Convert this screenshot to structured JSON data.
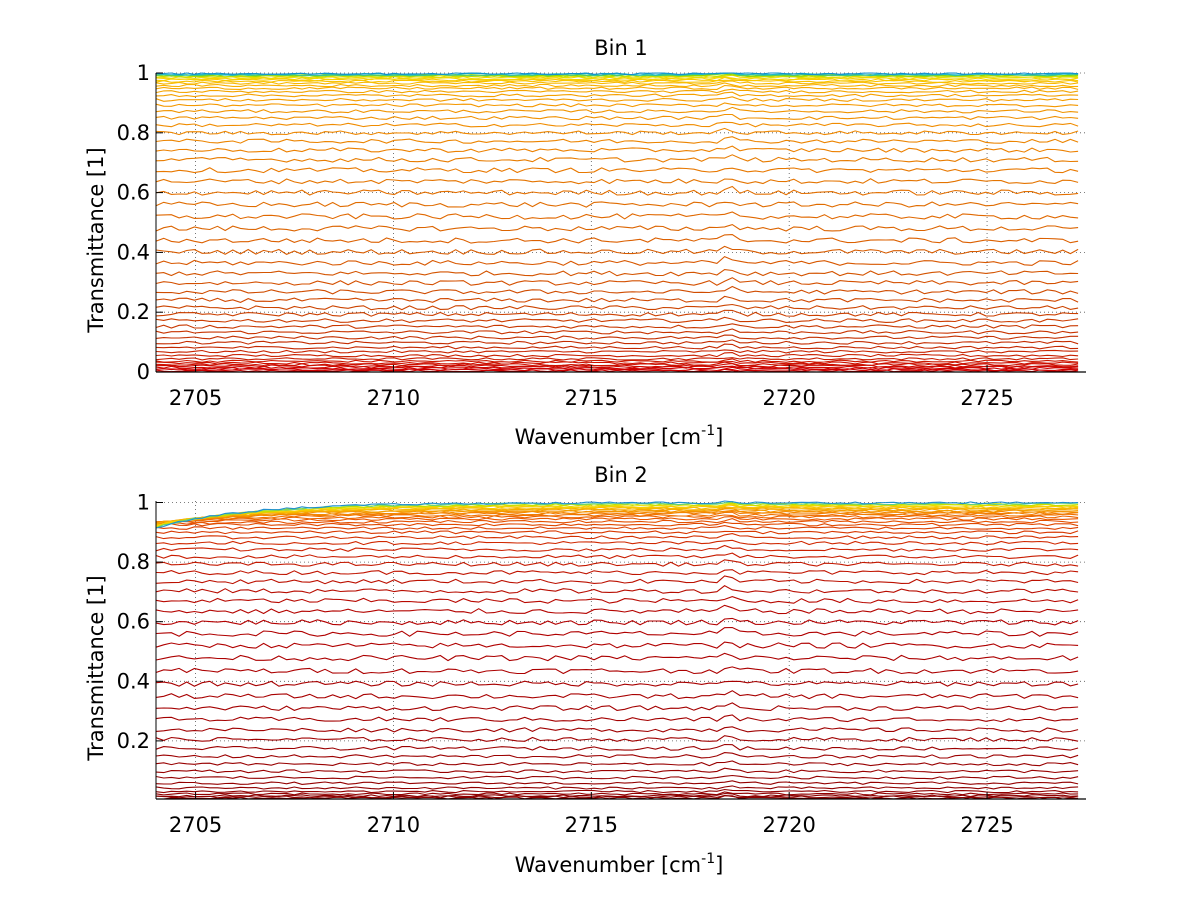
{
  "chart_data": [
    {
      "type": "line",
      "title": "Bin 1",
      "xlabel_main": "Wavenumber [cm",
      "xlabel_sup": "-1",
      "xlabel_tail": "]",
      "ylabel": "Transmittance [1]",
      "xlim": [
        2704,
        2727.5
      ],
      "ylim": [
        0,
        1
      ],
      "grid": true,
      "x_ticks": [
        2705,
        2710,
        2715,
        2720,
        2725
      ],
      "x_tick_labels": [
        "2705",
        "2710",
        "2715",
        "2720",
        "2725"
      ],
      "y_ticks": [
        0,
        0.2,
        0.4,
        0.6,
        0.8,
        1
      ],
      "y_tick_labels": [
        "0",
        "0.2",
        "0.4",
        "0.6",
        "0.8",
        "1"
      ],
      "series_levels": [
        0.0,
        0.004,
        0.008,
        0.012,
        0.016,
        0.02,
        0.025,
        0.03,
        0.036,
        0.044,
        0.055,
        0.068,
        0.082,
        0.098,
        0.115,
        0.133,
        0.152,
        0.172,
        0.193,
        0.215,
        0.24,
        0.268,
        0.298,
        0.33,
        0.365,
        0.402,
        0.44,
        0.48,
        0.52,
        0.56,
        0.6,
        0.638,
        0.675,
        0.71,
        0.742,
        0.772,
        0.8,
        0.826,
        0.85,
        0.872,
        0.892,
        0.91,
        0.925,
        0.938,
        0.949,
        0.958,
        0.966,
        0.972,
        0.977,
        0.981,
        0.985,
        0.988,
        0.99,
        0.992,
        0.994,
        0.996,
        0.998
      ],
      "series_colors": [
        "#cc0000",
        "#cc0000",
        "#cc0000",
        "#cc0000",
        "#cc0800",
        "#cc0800",
        "#cc1000",
        "#cc1000",
        "#cc1800",
        "#c81c00",
        "#c82000",
        "#c82400",
        "#c42800",
        "#c42c00",
        "#c43000",
        "#c83400",
        "#c83800",
        "#cc3c00",
        "#cc4000",
        "#cc4400",
        "#d04800",
        "#d04c00",
        "#d45000",
        "#d45400",
        "#d85800",
        "#d85c00",
        "#dc6000",
        "#dc6400",
        "#e06800",
        "#e06c00",
        "#e47000",
        "#e47400",
        "#e87800",
        "#e87c00",
        "#ec8000",
        "#ec8400",
        "#f08800",
        "#f08c00",
        "#f09000",
        "#f09400",
        "#f49800",
        "#f49c00",
        "#f4a000",
        "#f4a400",
        "#f8a800",
        "#f8b000",
        "#f8b800",
        "#f8c000",
        "#f8c800",
        "#f8d000",
        "#f0d800",
        "#e0e000",
        "#c0e000",
        "#90d800",
        "#40c880",
        "#20b8c8",
        "#1090d0"
      ],
      "tilt_amplitude": [
        0.0,
        0.0,
        0.0,
        0.0,
        0.0,
        0.0,
        0.0,
        0.0,
        0.0,
        0.0,
        0.0,
        0.0,
        0.0,
        0.0,
        0.0,
        0.0,
        0.0,
        0.0,
        0.0,
        0.0,
        0.0,
        0.0,
        0.0,
        0.0,
        0.0,
        0.0,
        0.0,
        0.0,
        0.0,
        0.0,
        0.0,
        0.0,
        0.0,
        0.0,
        0.0,
        0.0,
        0.0,
        0.0,
        0.0,
        0.0,
        0.0,
        0.0,
        0.0,
        0.0,
        0.0,
        0.0,
        0.0,
        0.0,
        0.0,
        0.0,
        0.0,
        0.0,
        0.0,
        0.0,
        0.0,
        0.0,
        0.0
      ]
    },
    {
      "type": "line",
      "title": "Bin 2",
      "xlabel_main": "Wavenumber [cm",
      "xlabel_sup": "-1",
      "xlabel_tail": "]",
      "ylabel": "Transmittance [1]",
      "xlim": [
        2704,
        2727.5
      ],
      "ylim": [
        0.005,
        1.005
      ],
      "grid": true,
      "x_ticks": [
        2705,
        2710,
        2715,
        2720,
        2725
      ],
      "x_tick_labels": [
        "2705",
        "2710",
        "2715",
        "2720",
        "2725"
      ],
      "y_ticks": [
        0.2,
        0.4,
        0.6,
        0.8,
        1
      ],
      "y_tick_labels": [
        "0.2",
        "0.4",
        "0.6",
        "0.8",
        "1"
      ],
      "series_levels": [
        0.008,
        0.012,
        0.016,
        0.022,
        0.03,
        0.042,
        0.058,
        0.077,
        0.098,
        0.122,
        0.148,
        0.175,
        0.205,
        0.237,
        0.272,
        0.31,
        0.35,
        0.392,
        0.435,
        0.478,
        0.52,
        0.56,
        0.598,
        0.635,
        0.67,
        0.703,
        0.735,
        0.765,
        0.793,
        0.818,
        0.842,
        0.864,
        0.883,
        0.9,
        0.914,
        0.926,
        0.936,
        0.945,
        0.952,
        0.958,
        0.963,
        0.967,
        0.971,
        0.975,
        0.978,
        0.981,
        0.984,
        0.987,
        0.99,
        0.993,
        0.996,
        0.999
      ],
      "series_colors": [
        "#8c0000",
        "#8c0000",
        "#8c0000",
        "#900000",
        "#900000",
        "#900000",
        "#940000",
        "#940000",
        "#980000",
        "#980000",
        "#9c0000",
        "#9c0000",
        "#a00000",
        "#a00000",
        "#a40000",
        "#a40000",
        "#a80000",
        "#a80000",
        "#ac0000",
        "#ac0000",
        "#b00000",
        "#b00000",
        "#b40000",
        "#b40400",
        "#b80800",
        "#b80c00",
        "#bc1000",
        "#c01400",
        "#c41800",
        "#c81c00",
        "#cc2000",
        "#d02800",
        "#d43000",
        "#d83800",
        "#dc4000",
        "#e04800",
        "#e45000",
        "#e85800",
        "#ec6400",
        "#f07000",
        "#f07c00",
        "#f48800",
        "#f49400",
        "#f4a000",
        "#f8ac00",
        "#f8b800",
        "#f8c400",
        "#f8d000",
        "#e8dc00",
        "#c0e000",
        "#60d080",
        "#2090d0"
      ],
      "tilt_amplitude": [
        0.0,
        0.0,
        0.0,
        0.0,
        0.0,
        0.0,
        0.0,
        0.0,
        0.0,
        0.0,
        0.0,
        0.0,
        0.0,
        0.0,
        0.0,
        0.0,
        0.0,
        0.0,
        0.0,
        0.0,
        0.0,
        0.0,
        0.0,
        0.0,
        0.0,
        0.0,
        0.0,
        0.0,
        0.0,
        0.0,
        0.0,
        0.0,
        0.0,
        0.0,
        0.0,
        0.0,
        0.01,
        0.015,
        0.02,
        0.025,
        0.03,
        0.035,
        0.04,
        0.045,
        0.05,
        0.055,
        0.06,
        0.065,
        0.07,
        0.075,
        0.08,
        0.085
      ]
    }
  ]
}
